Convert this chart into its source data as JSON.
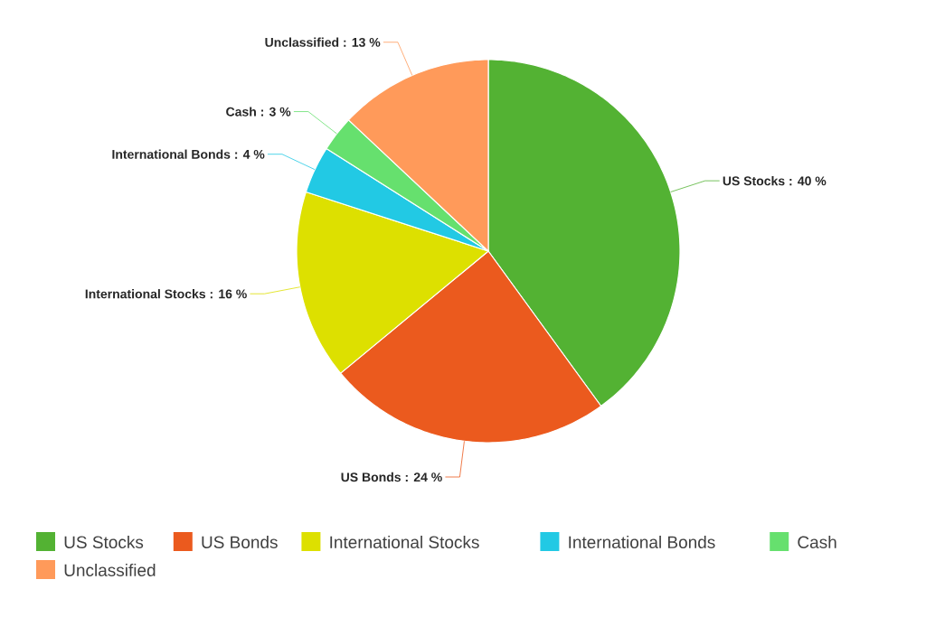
{
  "chart_data": {
    "type": "pie",
    "categories": [
      "US Stocks",
      "US Bonds",
      "International Stocks",
      "International Bonds",
      "Cash",
      "Unclassified"
    ],
    "values": [
      40,
      24,
      16,
      4,
      3,
      13
    ],
    "value_labels": [
      "US Stocks : 40 %",
      "US Bonds : 24 %",
      "International Stocks : 16 %",
      "International Bonds : 4 %",
      "Cash : 3 %",
      "Unclassified : 13 %"
    ],
    "colors": [
      "#53b233",
      "#eb5a1e",
      "#dde000",
      "#22c9e4",
      "#66e06e",
      "#ff9a5a"
    ],
    "legend": "bottom"
  }
}
